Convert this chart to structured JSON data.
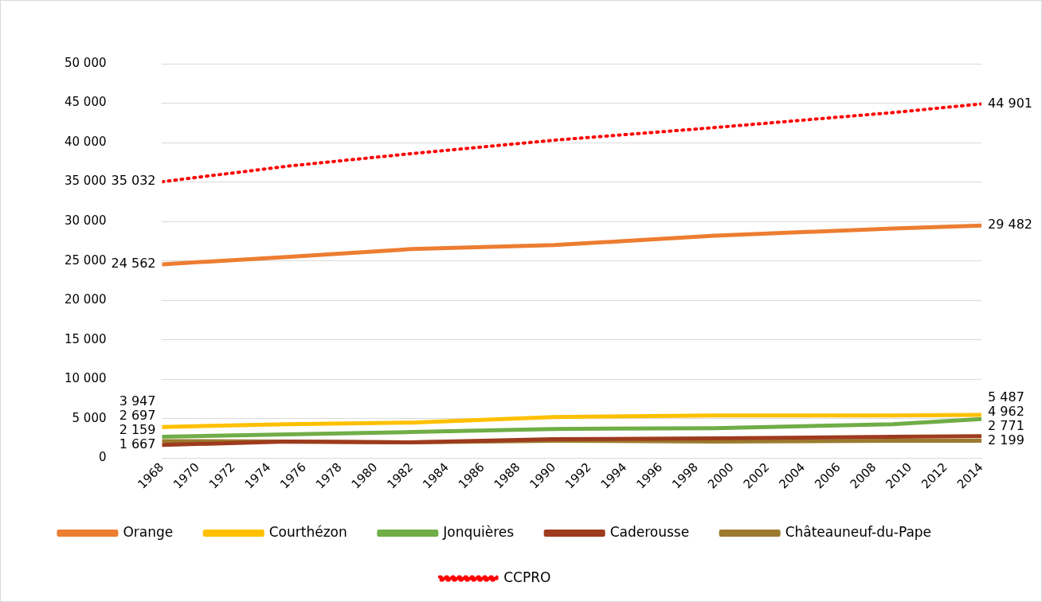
{
  "chart_data": {
    "type": "line",
    "x": [
      1968,
      1975,
      1982,
      1990,
      1999,
      2009,
      2014
    ],
    "xlim": [
      1968,
      2014
    ],
    "xticks": [
      1968,
      1970,
      1972,
      1974,
      1976,
      1978,
      1980,
      1982,
      1984,
      1986,
      1988,
      1990,
      1992,
      1994,
      1996,
      1998,
      2000,
      2002,
      2004,
      2006,
      2008,
      2010,
      2012,
      2014
    ],
    "ylim": [
      0,
      50000
    ],
    "yticks": [
      0,
      {
        "value": 5000,
        "label": "5 000"
      },
      {
        "value": 10000,
        "label": "10 000"
      },
      {
        "value": 15000,
        "label": "15 000"
      },
      {
        "value": 20000,
        "label": "20 000"
      },
      {
        "value": 25000,
        "label": "25 000"
      },
      {
        "value": 30000,
        "label": "30 000"
      },
      {
        "value": 35000,
        "label": "35 000"
      },
      {
        "value": 40000,
        "label": "40 000"
      },
      {
        "value": 45000,
        "label": "45 000"
      },
      {
        "value": 50000,
        "label": "50 000"
      }
    ],
    "grid": "y",
    "legend": "bottom",
    "marker": "none",
    "series": [
      {
        "name": "Orange",
        "color": "#ed7d31",
        "values": [
          24562,
          25500,
          26500,
          27000,
          28200,
          29100,
          29482
        ],
        "value_labels": [
          "24 562",
          null,
          null,
          null,
          null,
          null,
          "29 482"
        ]
      },
      {
        "name": "Courthézon",
        "color": "#ffc000",
        "values": [
          3947,
          4300,
          4500,
          5200,
          5400,
          5400,
          5487
        ],
        "value_labels": [
          "3 947",
          null,
          null,
          null,
          null,
          null,
          "5 487"
        ]
      },
      {
        "name": "Jonquières",
        "color": "#70ad47",
        "values": [
          2697,
          3000,
          3300,
          3700,
          3800,
          4300,
          4962
        ],
        "value_labels": [
          "2 697",
          null,
          null,
          null,
          null,
          null,
          "4 962"
        ]
      },
      {
        "name": "Caderousse",
        "color": "#9e3b1e",
        "values": [
          1667,
          2100,
          2000,
          2400,
          2500,
          2700,
          2771
        ],
        "value_labels": [
          "1 667",
          null,
          null,
          null,
          null,
          null,
          "2 771"
        ]
      },
      {
        "name": "Châteauneuf-du-Pape",
        "color": "#9c7a2e",
        "values": [
          2159,
          2100,
          2000,
          2200,
          2100,
          2200,
          2199
        ],
        "value_labels": [
          "2 159",
          null,
          null,
          null,
          null,
          null,
          "2 199"
        ]
      },
      {
        "name": "CCPRO",
        "color": "#ff0000",
        "line_style": "dotted",
        "values": [
          35032,
          37000,
          38600,
          40300,
          41900,
          43800,
          44901
        ],
        "value_labels": [
          "35 032",
          null,
          null,
          null,
          null,
          null,
          "44 901"
        ]
      }
    ]
  }
}
